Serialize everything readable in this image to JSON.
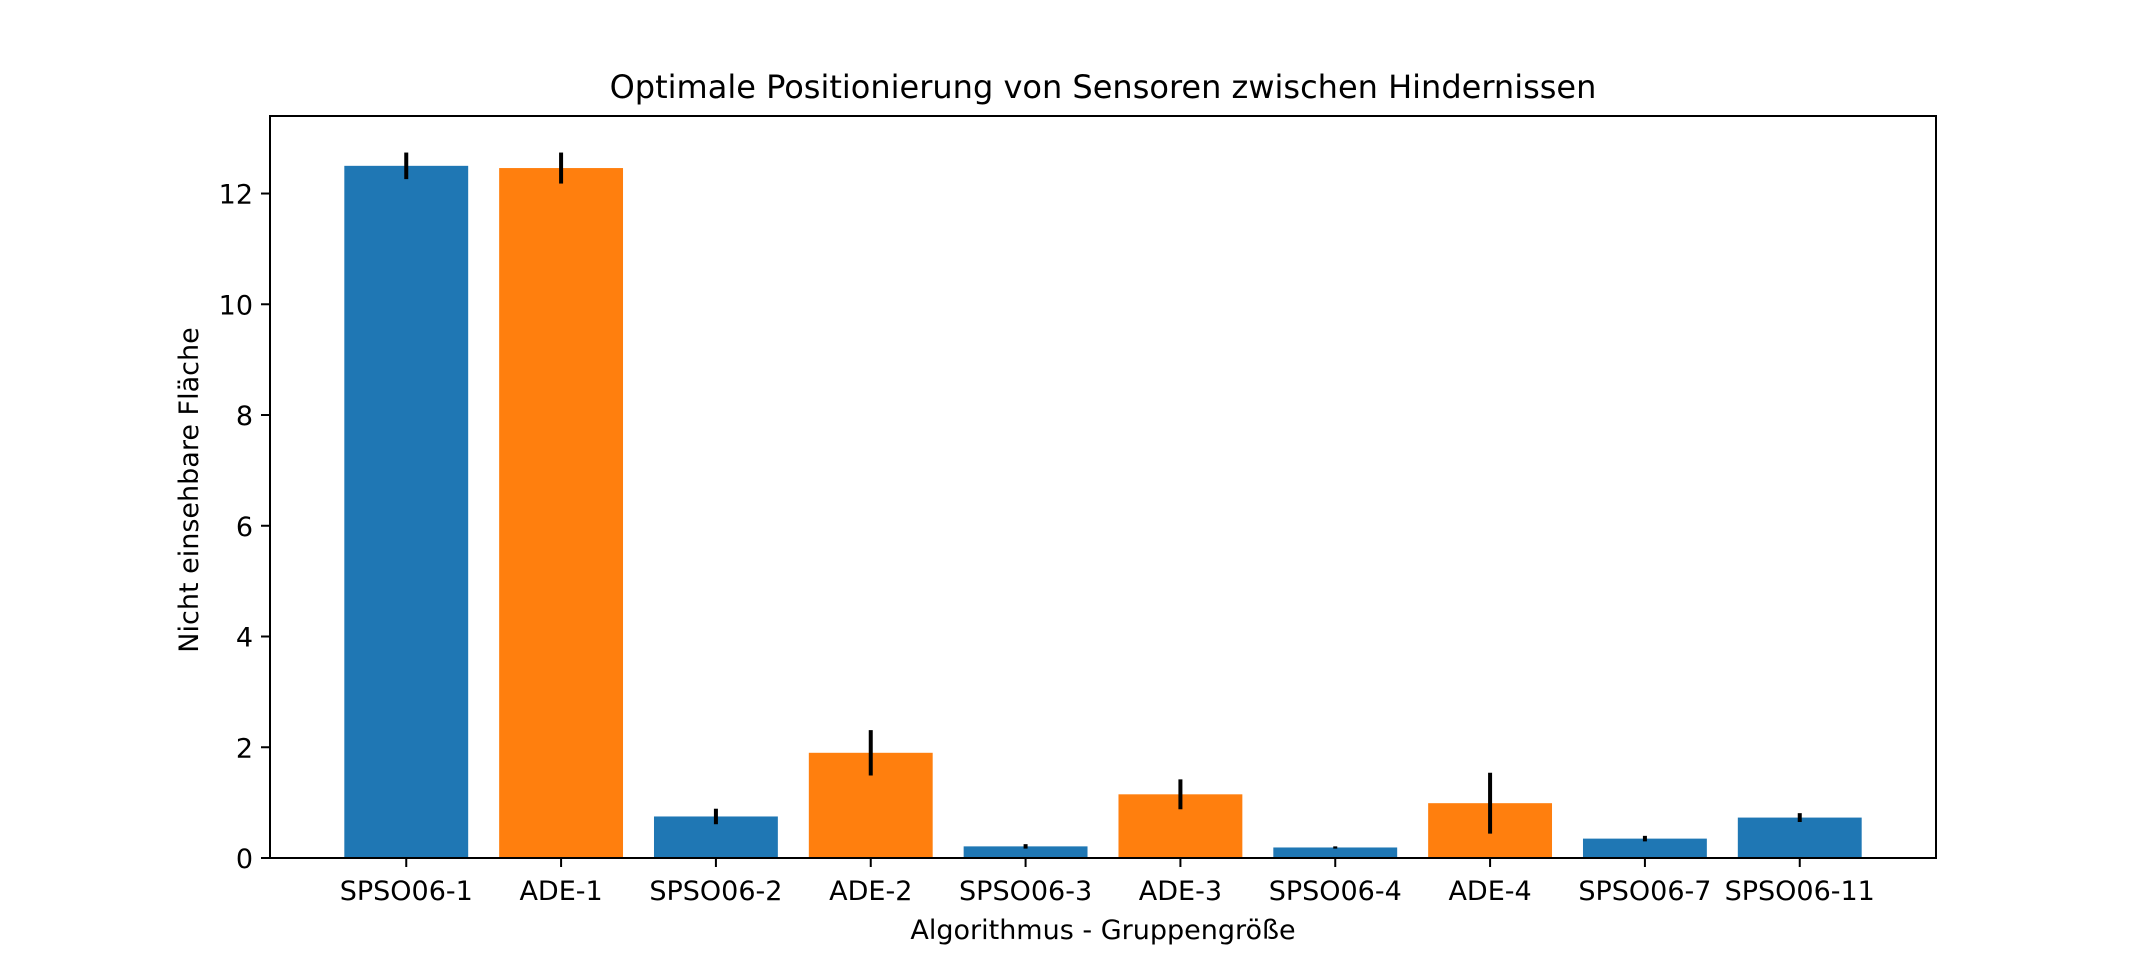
{
  "chart_data": {
    "type": "bar",
    "title": "Optimale Positionierung von Sensoren zwischen Hindernissen",
    "xlabel": "Algorithmus - Gruppengröße",
    "ylabel": "Nicht einsehbare Fläche",
    "ylim": [
      0,
      13.4
    ],
    "yticks": [
      0,
      2,
      4,
      6,
      8,
      10,
      12
    ],
    "grid": false,
    "legend": "none",
    "categories": [
      "SPSO06-1",
      "ADE-1",
      "SPSO06-2",
      "ADE-2",
      "SPSO06-3",
      "ADE-3",
      "SPSO06-4",
      "ADE-4",
      "SPSO06-7",
      "SPSO06-11"
    ],
    "values": [
      12.5,
      12.46,
      0.75,
      1.9,
      0.21,
      1.15,
      0.19,
      0.99,
      0.35,
      0.73
    ],
    "errors": [
      0.24,
      0.28,
      0.14,
      0.41,
      0.04,
      0.27,
      0.02,
      0.55,
      0.05,
      0.08
    ],
    "bar_colors": [
      "#1f77b4",
      "#ff7f0e",
      "#1f77b4",
      "#ff7f0e",
      "#1f77b4",
      "#ff7f0e",
      "#1f77b4",
      "#ff7f0e",
      "#1f77b4",
      "#1f77b4"
    ],
    "error_color": "#000000"
  }
}
